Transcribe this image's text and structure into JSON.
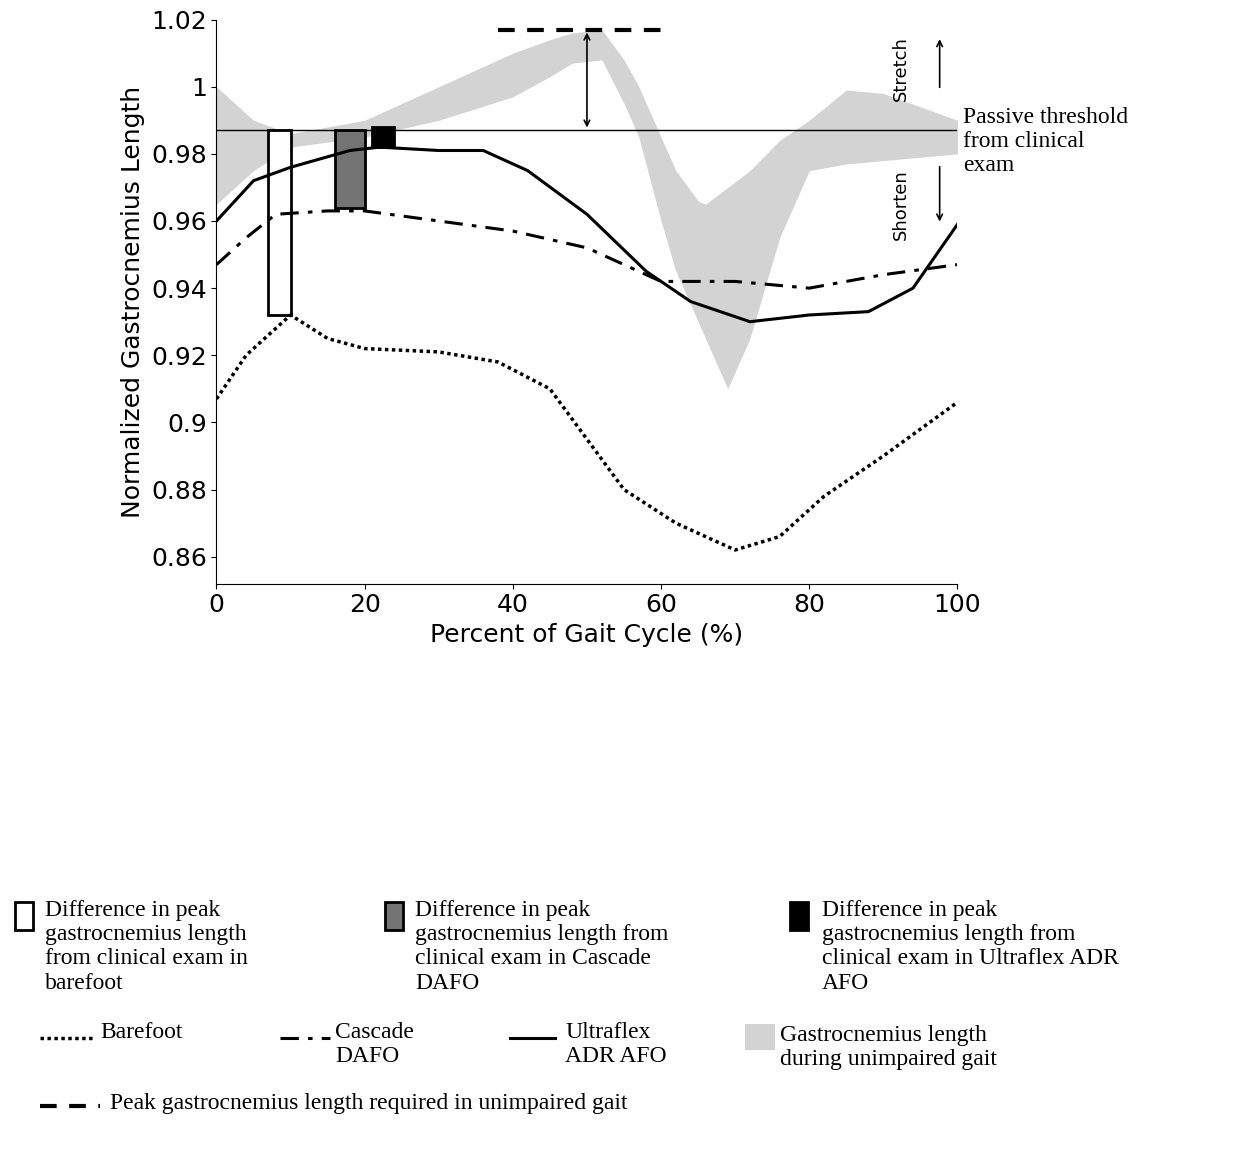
{
  "chart_data": {
    "type": "line",
    "x_label": "Percent of Gait Cycle (%)",
    "y_label": "Normalized Gastrocnemius Length",
    "xlim": [
      0,
      100
    ],
    "ylim": [
      0.852,
      1.02
    ],
    "xticks": [
      0,
      20,
      40,
      60,
      80,
      100
    ],
    "yticks": [
      0.86,
      0.88,
      0.9,
      0.92,
      0.94,
      0.96,
      0.98,
      1,
      1.02
    ],
    "grid": false,
    "series": [
      {
        "name": "Barefoot",
        "color": "#000000",
        "line_style": "dotted",
        "x": [
          0,
          4,
          10,
          15,
          20,
          30,
          38,
          45,
          50,
          55,
          62,
          70,
          76,
          82,
          90,
          100
        ],
        "values": [
          0.907,
          0.92,
          0.932,
          0.925,
          0.922,
          0.921,
          0.918,
          0.91,
          0.895,
          0.88,
          0.87,
          0.862,
          0.866,
          0.878,
          0.89,
          0.906
        ]
      },
      {
        "name": "Cascade\nDAFO",
        "color": "#000000",
        "line_style": "dashdot",
        "x": [
          0,
          4,
          8,
          15,
          20,
          30,
          40,
          50,
          60,
          70,
          80,
          90,
          100
        ],
        "values": [
          0.947,
          0.955,
          0.962,
          0.963,
          0.963,
          0.96,
          0.957,
          0.952,
          0.942,
          0.942,
          0.94,
          0.944,
          0.947
        ]
      },
      {
        "name": "Ultraflex\nADR AFO",
        "color": "#000000",
        "line_style": "solid",
        "x": [
          0,
          5,
          10,
          18,
          22,
          30,
          36,
          42,
          50,
          58,
          64,
          72,
          80,
          88,
          94,
          100
        ],
        "values": [
          0.96,
          0.972,
          0.976,
          0.981,
          0.982,
          0.981,
          0.981,
          0.975,
          0.962,
          0.945,
          0.936,
          0.93,
          0.932,
          0.933,
          0.94,
          0.959
        ]
      }
    ],
    "band": {
      "name": "Gastrocnemius length\nduring unimpaired gait",
      "color": "#d3d3d3",
      "x": [
        0,
        5,
        10,
        20,
        30,
        40,
        45,
        48,
        52,
        55,
        57,
        60,
        62,
        65,
        66,
        69,
        72,
        76,
        80,
        85,
        90,
        100
      ],
      "upper": [
        1.0,
        0.99,
        0.986,
        0.99,
        1.0,
        1.01,
        1.014,
        1.016,
        1.017,
        1.008,
        1.0,
        0.985,
        0.975,
        0.966,
        0.965,
        0.97,
        0.975,
        0.984,
        0.99,
        0.999,
        0.998,
        0.99
      ],
      "lower": [
        0.965,
        0.975,
        0.982,
        0.985,
        0.99,
        0.997,
        1.003,
        1.007,
        1.008,
        0.995,
        0.985,
        0.96,
        0.945,
        0.93,
        0.925,
        0.91,
        0.925,
        0.955,
        0.975,
        0.977,
        0.978,
        0.98
      ]
    },
    "threshold": {
      "label": "Passive threshold\nfrom clinical\nexam",
      "value": 0.987
    },
    "peak": {
      "label": "Peak gastrocnemius length required in unimpaired gait",
      "value": 1.017,
      "x": [
        38,
        60
      ],
      "arrow_x": 50
    },
    "bars": [
      {
        "name": "Difference in peak\ngastrocnemius length\nfrom clinical exam in\nbarefoot",
        "color": "#ffffff",
        "x": [
          7,
          10
        ],
        "bottom": 0.932,
        "top": 0.987
      },
      {
        "name": "Difference in peak\ngastrocnemius length from\nclinical exam in Cascade\nDAFO",
        "color": "#737373",
        "x": [
          16,
          20
        ],
        "bottom": 0.964,
        "top": 0.987
      },
      {
        "name": "Difference in peak\ngastrocnemius length from\nclinical exam in Ultraflex ADR\nAFO",
        "color": "#000000",
        "x": [
          21,
          24
        ],
        "bottom": 0.982,
        "top": 0.988
      }
    ],
    "annotations": {
      "stretch": "Stretch",
      "shorten": "Shorten"
    }
  }
}
